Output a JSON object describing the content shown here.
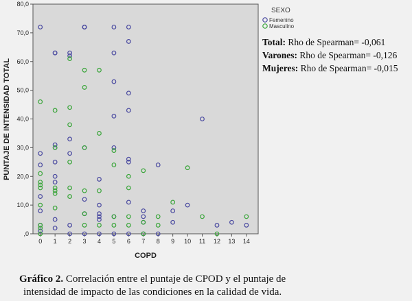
{
  "chart_data": {
    "type": "scatter",
    "xlabel": "COPD",
    "ylabel": "PUNTAJE DE INTENSIDAD TOTAL",
    "xlim": [
      -0.5,
      14.8
    ],
    "ylim": [
      0,
      80
    ],
    "x_ticks": [
      "0",
      "1",
      "2",
      "3",
      "4",
      "5",
      "6",
      "7",
      "8",
      "9",
      "10",
      "11",
      "12",
      "13",
      "14"
    ],
    "y_ticks": [
      ",0",
      "10,0",
      "20,0",
      "30,0",
      "40,0",
      "50,0",
      "60,0",
      "70,0",
      "80,0"
    ],
    "grid": false,
    "legend": {
      "title": "SEXO",
      "placement": "top-right-outside",
      "entries": [
        "Femenino",
        "Masculino"
      ]
    },
    "series": [
      {
        "name": "Femenino",
        "color": "#4a4aa0",
        "points": [
          [
            0,
            72
          ],
          [
            0,
            28
          ],
          [
            0,
            24
          ],
          [
            0,
            13
          ],
          [
            0,
            8
          ],
          [
            0,
            3
          ],
          [
            0,
            1
          ],
          [
            1,
            63
          ],
          [
            1,
            63
          ],
          [
            1,
            31
          ],
          [
            1,
            30
          ],
          [
            1,
            25
          ],
          [
            1,
            20
          ],
          [
            1,
            18
          ],
          [
            1,
            5
          ],
          [
            1,
            2
          ],
          [
            2,
            63
          ],
          [
            2,
            62
          ],
          [
            2,
            33
          ],
          [
            2,
            28
          ],
          [
            2,
            3
          ],
          [
            2,
            0
          ],
          [
            3,
            72
          ],
          [
            3,
            72
          ],
          [
            3,
            72
          ],
          [
            3,
            30
          ],
          [
            3,
            12
          ],
          [
            3,
            7
          ],
          [
            3,
            0
          ],
          [
            4,
            19
          ],
          [
            4,
            10
          ],
          [
            4,
            7
          ],
          [
            4,
            6
          ],
          [
            4,
            5
          ],
          [
            4,
            0
          ],
          [
            5,
            72
          ],
          [
            5,
            63
          ],
          [
            5,
            53
          ],
          [
            5,
            41
          ],
          [
            5,
            30
          ],
          [
            5,
            6
          ],
          [
            5,
            0
          ],
          [
            6,
            72
          ],
          [
            6,
            67
          ],
          [
            6,
            49
          ],
          [
            6,
            43
          ],
          [
            6,
            26
          ],
          [
            6,
            25
          ],
          [
            6,
            11
          ],
          [
            6,
            0
          ],
          [
            7,
            8
          ],
          [
            7,
            6
          ],
          [
            7,
            4
          ],
          [
            7,
            0
          ],
          [
            8,
            24
          ],
          [
            8,
            0
          ],
          [
            9,
            8
          ],
          [
            9,
            4
          ],
          [
            10,
            10
          ],
          [
            11,
            40
          ],
          [
            12,
            3
          ],
          [
            13,
            4
          ],
          [
            14,
            3
          ]
        ]
      },
      {
        "name": "Masculino",
        "color": "#3aa53a",
        "points": [
          [
            0,
            46
          ],
          [
            0,
            21
          ],
          [
            0,
            18
          ],
          [
            0,
            17
          ],
          [
            0,
            16
          ],
          [
            0,
            10
          ],
          [
            0,
            3
          ],
          [
            0,
            2
          ],
          [
            0,
            0
          ],
          [
            1,
            43
          ],
          [
            1,
            30
          ],
          [
            1,
            16
          ],
          [
            1,
            15
          ],
          [
            1,
            14
          ],
          [
            1,
            9
          ],
          [
            2,
            61
          ],
          [
            2,
            44
          ],
          [
            2,
            38
          ],
          [
            2,
            25
          ],
          [
            2,
            16
          ],
          [
            2,
            13
          ],
          [
            3,
            57
          ],
          [
            3,
            51
          ],
          [
            3,
            30
          ],
          [
            3,
            15
          ],
          [
            3,
            7
          ],
          [
            3,
            3
          ],
          [
            4,
            57
          ],
          [
            4,
            35
          ],
          [
            4,
            15
          ],
          [
            4,
            3
          ],
          [
            5,
            29
          ],
          [
            5,
            24
          ],
          [
            5,
            6
          ],
          [
            5,
            3
          ],
          [
            6,
            20
          ],
          [
            6,
            16
          ],
          [
            6,
            6
          ],
          [
            6,
            3
          ],
          [
            7,
            22
          ],
          [
            7,
            4
          ],
          [
            7,
            0
          ],
          [
            8,
            6
          ],
          [
            8,
            3
          ],
          [
            9,
            11
          ],
          [
            10,
            23
          ],
          [
            11,
            6
          ],
          [
            12,
            0
          ],
          [
            14,
            6
          ]
        ]
      }
    ]
  },
  "stats": {
    "total": {
      "label": "Total:",
      "value": "Rho de Spearman= -0,061"
    },
    "varones": {
      "label": "Varones:",
      "value": "Rho de Spearman= -0,126"
    },
    "mujeres": {
      "label": "Mujeres:",
      "value": "Rho de Spearman= -0,015"
    }
  },
  "caption": {
    "label": "Gráfico 2.",
    "line1": "Correlación entre el puntaje de CPOD y el puntaje de",
    "line2": "intensidad de impacto de las condiciones en la calidad de vida."
  }
}
